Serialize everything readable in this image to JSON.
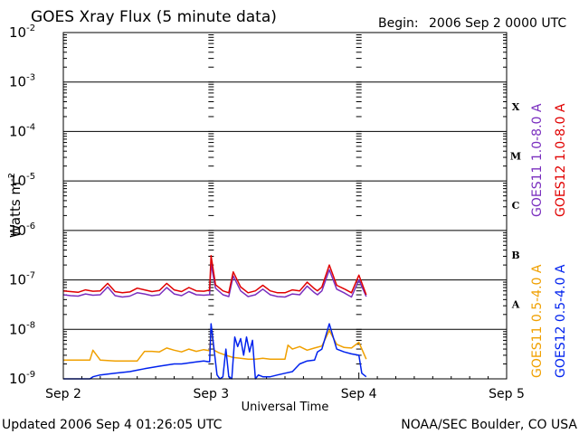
{
  "header": {
    "title": "GOES Xray Flux (5 minute data)",
    "begin_label": "Begin:",
    "begin_value": "2006 Sep 2 0000 UTC"
  },
  "footer": {
    "updated": "Updated 2006 Sep  4 01:26:05 UTC",
    "credit": "NOAA/SEC Boulder, CO USA"
  },
  "chart_data": {
    "type": "line",
    "title": "GOES Xray Flux (5 minute data)",
    "xlabel": "Universal Time",
    "ylabel": "Watts m",
    "ylabel_exponent": "-2",
    "y_scale": "log",
    "ylim": [
      1e-09,
      0.01
    ],
    "xlim_days": [
      0,
      3
    ],
    "x_ticks": [
      "Sep 2",
      "Sep 3",
      "Sep 4",
      "Sep 5"
    ],
    "y_ticks": [
      {
        "base": "10",
        "exp": "-2",
        "value": 0.01
      },
      {
        "base": "10",
        "exp": "-3",
        "value": 0.001
      },
      {
        "base": "10",
        "exp": "-4",
        "value": 0.0001
      },
      {
        "base": "10",
        "exp": "-5",
        "value": 1e-05
      },
      {
        "base": "10",
        "exp": "-6",
        "value": 1e-06
      },
      {
        "base": "10",
        "exp": "-7",
        "value": 1e-07
      },
      {
        "base": "10",
        "exp": "-8",
        "value": 1e-08
      },
      {
        "base": "10",
        "exp": "-9",
        "value": 1e-09
      }
    ],
    "flare_classes": [
      {
        "label": "X",
        "value": 0.00032
      },
      {
        "label": "M",
        "value": 3.2e-05
      },
      {
        "label": "C",
        "value": 3.2e-06
      },
      {
        "label": "B",
        "value": 3.2e-07
      },
      {
        "label": "A",
        "value": 3.2e-08
      }
    ],
    "grid": true,
    "legend_position": "right",
    "series": [
      {
        "name": "GOES11 1.0-8.0 A",
        "color": "#7a2fbf",
        "x": [
          0.0,
          0.05,
          0.1,
          0.15,
          0.2,
          0.25,
          0.3,
          0.35,
          0.4,
          0.45,
          0.5,
          0.55,
          0.6,
          0.65,
          0.7,
          0.75,
          0.8,
          0.85,
          0.9,
          0.95,
          0.99,
          1.0,
          1.03,
          1.08,
          1.12,
          1.15,
          1.2,
          1.25,
          1.3,
          1.35,
          1.4,
          1.45,
          1.5,
          1.55,
          1.6,
          1.65,
          1.7,
          1.72,
          1.75,
          1.8,
          1.85,
          1.9,
          1.95,
          2.0,
          2.05
        ],
        "y": [
          5e-08,
          4.8e-08,
          4.7e-08,
          5.2e-08,
          4.9e-08,
          5e-08,
          7.2e-08,
          4.8e-08,
          4.5e-08,
          4.7e-08,
          5.5e-08,
          5.2e-08,
          4.8e-08,
          5e-08,
          7e-08,
          5.2e-08,
          4.8e-08,
          5.8e-08,
          5e-08,
          4.9e-08,
          5e-08,
          2.1e-07,
          6.8e-08,
          5e-08,
          4.6e-08,
          1.2e-07,
          6e-08,
          4.6e-08,
          5e-08,
          6.5e-08,
          5e-08,
          4.6e-08,
          4.5e-08,
          5.2e-08,
          5e-08,
          7.5e-08,
          5.5e-08,
          5e-08,
          6e-08,
          1.6e-07,
          6.5e-08,
          5.5e-08,
          4.5e-08,
          1e-07,
          4.6e-08
        ]
      },
      {
        "name": "GOES12 1.0-8.0 A",
        "color": "#e00000",
        "x": [
          0.0,
          0.05,
          0.1,
          0.15,
          0.2,
          0.25,
          0.3,
          0.35,
          0.4,
          0.45,
          0.5,
          0.55,
          0.6,
          0.65,
          0.7,
          0.75,
          0.8,
          0.85,
          0.9,
          0.95,
          0.99,
          1.0,
          1.03,
          1.08,
          1.12,
          1.15,
          1.2,
          1.25,
          1.3,
          1.35,
          1.4,
          1.45,
          1.5,
          1.55,
          1.6,
          1.65,
          1.7,
          1.72,
          1.75,
          1.8,
          1.85,
          1.9,
          1.95,
          2.0,
          2.05
        ],
        "y": [
          6e-08,
          5.8e-08,
          5.6e-08,
          6.3e-08,
          5.9e-08,
          6e-08,
          8.5e-08,
          5.8e-08,
          5.5e-08,
          5.7e-08,
          6.8e-08,
          6.3e-08,
          5.8e-08,
          6.1e-08,
          8.5e-08,
          6.3e-08,
          5.8e-08,
          7e-08,
          6e-08,
          5.9e-08,
          6.2e-08,
          3.1e-07,
          8e-08,
          6e-08,
          5.5e-08,
          1.45e-07,
          7.2e-08,
          5.5e-08,
          6e-08,
          7.8e-08,
          6e-08,
          5.5e-08,
          5.5e-08,
          6.3e-08,
          6e-08,
          9e-08,
          6.6e-08,
          6e-08,
          7.2e-08,
          2e-07,
          7.8e-08,
          6.6e-08,
          5.5e-08,
          1.25e-07,
          5e-08
        ]
      },
      {
        "name": "GOES11 0.5-4.0 A",
        "color": "#f0a000",
        "x": [
          0.0,
          0.08,
          0.12,
          0.18,
          0.2,
          0.25,
          0.35,
          0.5,
          0.55,
          0.6,
          0.65,
          0.7,
          0.75,
          0.8,
          0.85,
          0.9,
          0.95,
          0.99,
          1.0,
          1.02,
          1.05,
          1.1,
          1.15,
          1.2,
          1.25,
          1.3,
          1.35,
          1.4,
          1.45,
          1.5,
          1.52,
          1.55,
          1.6,
          1.65,
          1.7,
          1.75,
          1.8,
          1.85,
          1.9,
          1.95,
          2.0,
          2.05
        ],
        "y": [
          2.4e-09,
          2.4e-09,
          2.4e-09,
          2.4e-09,
          3.8e-09,
          2.4e-09,
          2.3e-09,
          2.3e-09,
          3.6e-09,
          3.6e-09,
          3.5e-09,
          4.2e-09,
          3.8e-09,
          3.5e-09,
          4e-09,
          3.6e-09,
          3.9e-09,
          3.7e-09,
          1.1e-08,
          3.8e-09,
          3.4e-09,
          3e-09,
          2.7e-09,
          2.6e-09,
          2.5e-09,
          2.5e-09,
          2.6e-09,
          2.5e-09,
          2.5e-09,
          2.5e-09,
          4.8e-09,
          4e-09,
          4.5e-09,
          3.8e-09,
          4.2e-09,
          4.6e-09,
          9.5e-09,
          5e-09,
          4.3e-09,
          4.2e-09,
          5.5e-09,
          2.5e-09
        ]
      },
      {
        "name": "GOES12 0.5-4.0 A",
        "color": "#0022ee",
        "x": [
          0.0,
          0.1,
          0.15,
          0.18,
          0.2,
          0.25,
          0.35,
          0.45,
          0.5,
          0.55,
          0.6,
          0.65,
          0.7,
          0.75,
          0.8,
          0.85,
          0.9,
          0.95,
          0.99,
          1.0,
          1.02,
          1.04,
          1.06,
          1.08,
          1.1,
          1.12,
          1.14,
          1.16,
          1.18,
          1.2,
          1.22,
          1.24,
          1.26,
          1.28,
          1.3,
          1.32,
          1.35,
          1.4,
          1.45,
          1.5,
          1.55,
          1.6,
          1.65,
          1.7,
          1.72,
          1.75,
          1.8,
          1.85,
          1.9,
          1.95,
          2.0,
          2.02,
          2.05
        ],
        "y": [
          1e-09,
          1e-09,
          1e-09,
          1e-09,
          1.1e-09,
          1.2e-09,
          1.3e-09,
          1.4e-09,
          1.5e-09,
          1.6e-09,
          1.7e-09,
          1.8e-09,
          1.9e-09,
          2e-09,
          2e-09,
          2.1e-09,
          2.2e-09,
          2.3e-09,
          2.2e-09,
          1.3e-08,
          4e-09,
          1.2e-09,
          1e-09,
          1.1e-09,
          4e-09,
          1.1e-09,
          1e-09,
          7e-09,
          4.5e-09,
          6.5e-09,
          3e-09,
          7e-09,
          3.5e-09,
          6e-09,
          1e-09,
          1.2e-09,
          1.1e-09,
          1.1e-09,
          1.2e-09,
          1.3e-09,
          1.4e-09,
          2e-09,
          2.3e-09,
          2.4e-09,
          3.5e-09,
          4e-09,
          1.3e-08,
          4e-09,
          3.5e-09,
          3.2e-09,
          3e-09,
          1.3e-09,
          1.1e-09
        ]
      }
    ]
  }
}
